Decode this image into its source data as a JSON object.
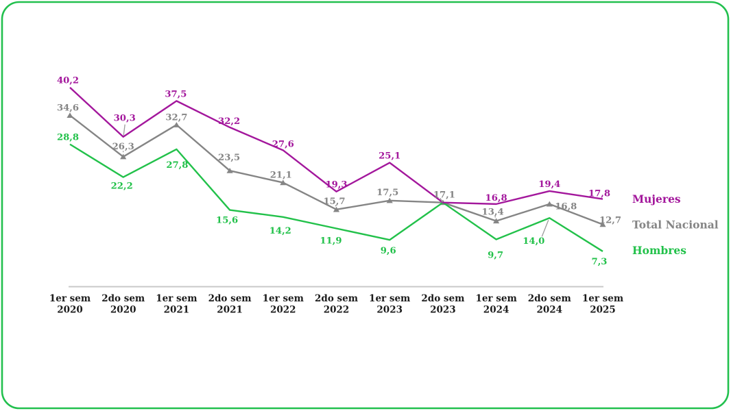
{
  "card": {
    "background": "#ffffff",
    "border_color": "#22c04e"
  },
  "chart_data": {
    "type": "line",
    "categories": [
      [
        "1er sem",
        "2020"
      ],
      [
        "2do sem",
        "2020"
      ],
      [
        "1er sem",
        "2021"
      ],
      [
        "2do sem",
        "2021"
      ],
      [
        "1er sem",
        "2022"
      ],
      [
        "2do sem",
        "2022"
      ],
      [
        "1er sem",
        "2023"
      ],
      [
        "2do sem",
        "2023"
      ],
      [
        "1er sem",
        "2024"
      ],
      [
        "2do sem",
        "2024"
      ],
      [
        "1er sem",
        "2025"
      ]
    ],
    "series": [
      {
        "name": "Mujeres",
        "color": "#a3179c",
        "marker": "none",
        "values": [
          40.2,
          30.3,
          37.5,
          32.2,
          27.6,
          19.3,
          25.1,
          17.1,
          16.8,
          19.4,
          17.8
        ],
        "labels": [
          "40,2",
          "30,3",
          "37,5",
          "32,2",
          "27,6",
          "19,3",
          "25,1",
          "",
          "16,8",
          "19,4",
          "17,8"
        ]
      },
      {
        "name": "Total Nacional",
        "color": "#858585",
        "marker": "triangle",
        "values": [
          34.6,
          26.3,
          32.7,
          23.5,
          21.1,
          15.7,
          17.5,
          17.1,
          13.4,
          16.8,
          12.7
        ],
        "labels": [
          "34,6",
          "26,3",
          "32,7",
          "23,5",
          "21,1",
          "15,7",
          "17,5",
          "17,1",
          "13,4",
          "16,8",
          "12,7"
        ]
      },
      {
        "name": "Hombres",
        "color": "#22c14a",
        "marker": "none",
        "values": [
          28.8,
          22.2,
          27.8,
          15.6,
          14.2,
          11.9,
          9.6,
          17.1,
          9.7,
          14.0,
          7.3
        ],
        "labels": [
          "28,8",
          "22,2",
          "27,8",
          "15,6",
          "14,2",
          "11,9",
          "9,6",
          "",
          "9,7",
          "14,0",
          "7,3"
        ]
      }
    ],
    "title": "",
    "xlabel": "",
    "ylabel": "",
    "ylim": [
      0,
      44
    ],
    "grid": false,
    "legend_position": "right",
    "axis_line_color": "#c9c9c9",
    "tick_label_color": "#1b1b1b",
    "decimal_separator": ","
  }
}
